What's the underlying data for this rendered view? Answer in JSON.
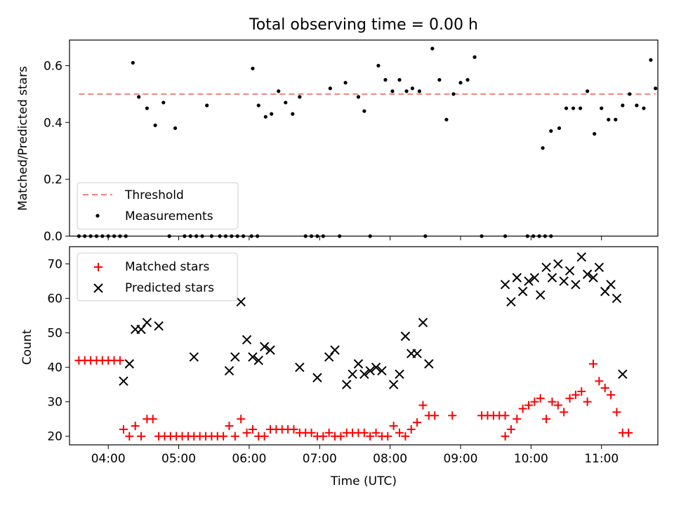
{
  "chart_data": [
    {
      "type": "scatter",
      "title": "Total observing time = 0.00 h",
      "xlabel": "",
      "ylabel": "Matched/Predicted stars",
      "xlim": [
        "03:27",
        "11:48"
      ],
      "ylim": [
        0,
        0.69
      ],
      "yticks": [
        "0.0",
        "0.2",
        "0.4",
        "0.6"
      ],
      "grid": false,
      "legend_position": "lower-left",
      "threshold": {
        "name": "Threshold",
        "value": 0.5,
        "style": "dashed",
        "color": "#f08080"
      },
      "series": [
        {
          "name": "Measurements",
          "marker": "dot",
          "color": "#000000",
          "points": [
            [
              "03:35",
              0
            ],
            [
              "03:40",
              0
            ],
            [
              "03:45",
              0
            ],
            [
              "03:50",
              0
            ],
            [
              "03:55",
              0
            ],
            [
              "04:00",
              0
            ],
            [
              "04:05",
              0
            ],
            [
              "04:10",
              0
            ],
            [
              "04:15",
              0
            ],
            [
              "04:21",
              0.61
            ],
            [
              "04:26",
              0.49
            ],
            [
              "04:33",
              0.45
            ],
            [
              "04:40",
              0.39
            ],
            [
              "04:47",
              0.47
            ],
            [
              "04:52",
              0
            ],
            [
              "04:57",
              0.38
            ],
            [
              "05:05",
              0
            ],
            [
              "05:10",
              0
            ],
            [
              "05:15",
              0
            ],
            [
              "05:20",
              0
            ],
            [
              "05:24",
              0.46
            ],
            [
              "05:28",
              0
            ],
            [
              "05:35",
              0
            ],
            [
              "05:40",
              0
            ],
            [
              "05:45",
              0
            ],
            [
              "05:50",
              0
            ],
            [
              "05:55",
              0
            ],
            [
              "06:02",
              0
            ],
            [
              "06:07",
              0
            ],
            [
              "06:03",
              0.59
            ],
            [
              "06:08",
              0.46
            ],
            [
              "06:14",
              0.42
            ],
            [
              "06:19",
              0.43
            ],
            [
              "06:25",
              0.51
            ],
            [
              "06:31",
              0.47
            ],
            [
              "06:37",
              0.43
            ],
            [
              "06:43",
              0.49
            ],
            [
              "06:48",
              0
            ],
            [
              "06:53",
              0
            ],
            [
              "06:58",
              0
            ],
            [
              "07:03",
              0
            ],
            [
              "07:09",
              0.52
            ],
            [
              "07:17",
              0
            ],
            [
              "07:22",
              0.54
            ],
            [
              "07:33",
              0.49
            ],
            [
              "07:38",
              0.44
            ],
            [
              "07:43",
              0
            ],
            [
              "07:50",
              0.6
            ],
            [
              "07:56",
              0.55
            ],
            [
              "08:02",
              0.51
            ],
            [
              "08:08",
              0.55
            ],
            [
              "08:14",
              0.51
            ],
            [
              "08:19",
              0.52
            ],
            [
              "08:25",
              0.51
            ],
            [
              "08:30",
              0
            ],
            [
              "08:36",
              0.66
            ],
            [
              "08:42",
              0.55
            ],
            [
              "08:48",
              0.41
            ],
            [
              "08:54",
              0.5
            ],
            [
              "09:00",
              0.54
            ],
            [
              "09:06",
              0.55
            ],
            [
              "09:12",
              0.63
            ],
            [
              "09:18",
              0
            ],
            [
              "09:38",
              0
            ],
            [
              "09:57",
              0
            ],
            [
              "10:02",
              0
            ],
            [
              "10:07",
              0
            ],
            [
              "10:12",
              0
            ],
            [
              "10:17",
              0
            ],
            [
              "10:10",
              0.31
            ],
            [
              "10:17",
              0.37
            ],
            [
              "10:24",
              0.38
            ],
            [
              "10:30",
              0.45
            ],
            [
              "10:36",
              0.45
            ],
            [
              "10:42",
              0.45
            ],
            [
              "10:48",
              0.51
            ],
            [
              "10:54",
              0.36
            ],
            [
              "11:00",
              0.45
            ],
            [
              "11:06",
              0.41
            ],
            [
              "11:12",
              0.41
            ],
            [
              "11:18",
              0.46
            ],
            [
              "11:24",
              0.5
            ],
            [
              "11:30",
              0.46
            ],
            [
              "11:36",
              0.45
            ],
            [
              "11:42",
              0.62
            ],
            [
              "11:46",
              0.52
            ]
          ]
        }
      ]
    },
    {
      "type": "scatter",
      "title": "",
      "xlabel": "Time (UTC)",
      "ylabel": "Count",
      "xlim": [
        "03:27",
        "11:48"
      ],
      "ylim": [
        17.5,
        75
      ],
      "yticks": [
        "20",
        "30",
        "40",
        "50",
        "60",
        "70"
      ],
      "xticks": [
        "04:00",
        "05:00",
        "06:00",
        "07:00",
        "08:00",
        "09:00",
        "10:00",
        "11:00"
      ],
      "grid": false,
      "legend_position": "upper-left",
      "series": [
        {
          "name": "Matched stars",
          "marker": "plus",
          "color": "#ff0000",
          "points": [
            [
              "03:35",
              42
            ],
            [
              "03:40",
              42
            ],
            [
              "03:45",
              42
            ],
            [
              "03:50",
              42
            ],
            [
              "03:55",
              42
            ],
            [
              "04:00",
              42
            ],
            [
              "04:05",
              42
            ],
            [
              "04:10",
              42
            ],
            [
              "04:13",
              22
            ],
            [
              "04:18",
              20
            ],
            [
              "04:23",
              23
            ],
            [
              "04:28",
              20
            ],
            [
              "04:33",
              25
            ],
            [
              "04:38",
              25
            ],
            [
              "04:43",
              20
            ],
            [
              "04:48",
              20
            ],
            [
              "04:53",
              20
            ],
            [
              "04:58",
              20
            ],
            [
              "05:03",
              20
            ],
            [
              "05:08",
              20
            ],
            [
              "05:13",
              20
            ],
            [
              "05:18",
              20
            ],
            [
              "05:23",
              20
            ],
            [
              "05:28",
              20
            ],
            [
              "05:33",
              20
            ],
            [
              "05:38",
              20
            ],
            [
              "05:43",
              23
            ],
            [
              "05:48",
              20
            ],
            [
              "05:53",
              25
            ],
            [
              "05:58",
              21
            ],
            [
              "06:03",
              22
            ],
            [
              "06:08",
              20
            ],
            [
              "06:13",
              20
            ],
            [
              "06:18",
              22
            ],
            [
              "06:23",
              22
            ],
            [
              "06:28",
              22
            ],
            [
              "06:33",
              22
            ],
            [
              "06:38",
              22
            ],
            [
              "06:43",
              21
            ],
            [
              "06:48",
              21
            ],
            [
              "06:53",
              21
            ],
            [
              "06:58",
              20
            ],
            [
              "07:03",
              20
            ],
            [
              "07:08",
              21
            ],
            [
              "07:13",
              20
            ],
            [
              "07:18",
              20
            ],
            [
              "07:23",
              21
            ],
            [
              "07:28",
              21
            ],
            [
              "07:33",
              21
            ],
            [
              "07:38",
              21
            ],
            [
              "07:43",
              20
            ],
            [
              "07:48",
              21
            ],
            [
              "07:53",
              20
            ],
            [
              "07:58",
              20
            ],
            [
              "08:03",
              23
            ],
            [
              "08:08",
              21
            ],
            [
              "08:13",
              20
            ],
            [
              "08:18",
              22
            ],
            [
              "08:23",
              24
            ],
            [
              "08:28",
              29
            ],
            [
              "08:33",
              26
            ],
            [
              "08:38",
              26
            ],
            [
              "08:53",
              26
            ],
            [
              "09:18",
              26
            ],
            [
              "09:23",
              26
            ],
            [
              "09:28",
              26
            ],
            [
              "09:33",
              26
            ],
            [
              "09:38",
              26
            ],
            [
              "09:38",
              20
            ],
            [
              "09:43",
              22
            ],
            [
              "09:48",
              25
            ],
            [
              "09:53",
              28
            ],
            [
              "09:58",
              29
            ],
            [
              "10:03",
              30
            ],
            [
              "10:08",
              31
            ],
            [
              "10:13",
              25
            ],
            [
              "10:18",
              30
            ],
            [
              "10:23",
              29
            ],
            [
              "10:28",
              27
            ],
            [
              "10:33",
              31
            ],
            [
              "10:38",
              32
            ],
            [
              "10:43",
              33
            ],
            [
              "10:48",
              30
            ],
            [
              "10:53",
              41
            ],
            [
              "10:58",
              36
            ],
            [
              "11:03",
              34
            ],
            [
              "11:08",
              32
            ],
            [
              "11:13",
              27
            ],
            [
              "11:18",
              21
            ],
            [
              "11:23",
              21
            ]
          ]
        },
        {
          "name": "Predicted stars",
          "marker": "x",
          "color": "#000000",
          "points": [
            [
              "04:13",
              36
            ],
            [
              "04:18",
              41
            ],
            [
              "04:23",
              51
            ],
            [
              "04:28",
              51
            ],
            [
              "04:33",
              53
            ],
            [
              "04:43",
              52
            ],
            [
              "05:13",
              43
            ],
            [
              "05:43",
              39
            ],
            [
              "05:48",
              43
            ],
            [
              "05:53",
              59
            ],
            [
              "05:58",
              48
            ],
            [
              "06:03",
              43
            ],
            [
              "06:08",
              42
            ],
            [
              "06:13",
              46
            ],
            [
              "06:18",
              45
            ],
            [
              "06:43",
              40
            ],
            [
              "06:58",
              37
            ],
            [
              "07:08",
              43
            ],
            [
              "07:13",
              45
            ],
            [
              "07:23",
              35
            ],
            [
              "07:28",
              38
            ],
            [
              "07:33",
              41
            ],
            [
              "07:38",
              38
            ],
            [
              "07:43",
              39
            ],
            [
              "07:48",
              40
            ],
            [
              "07:53",
              39
            ],
            [
              "08:03",
              35
            ],
            [
              "08:08",
              38
            ],
            [
              "08:13",
              49
            ],
            [
              "08:18",
              44
            ],
            [
              "08:23",
              44
            ],
            [
              "08:28",
              53
            ],
            [
              "08:33",
              41
            ],
            [
              "09:38",
              64
            ],
            [
              "09:43",
              59
            ],
            [
              "09:48",
              66
            ],
            [
              "09:53",
              62
            ],
            [
              "09:58",
              65
            ],
            [
              "10:03",
              66
            ],
            [
              "10:08",
              61
            ],
            [
              "10:13",
              69
            ],
            [
              "10:18",
              66
            ],
            [
              "10:23",
              70
            ],
            [
              "10:28",
              65
            ],
            [
              "10:33",
              68
            ],
            [
              "10:38",
              64
            ],
            [
              "10:43",
              72
            ],
            [
              "10:48",
              67
            ],
            [
              "10:53",
              66
            ],
            [
              "10:58",
              69
            ],
            [
              "11:03",
              62
            ],
            [
              "11:08",
              64
            ],
            [
              "11:13",
              60
            ],
            [
              "11:18",
              38
            ]
          ]
        }
      ]
    }
  ]
}
